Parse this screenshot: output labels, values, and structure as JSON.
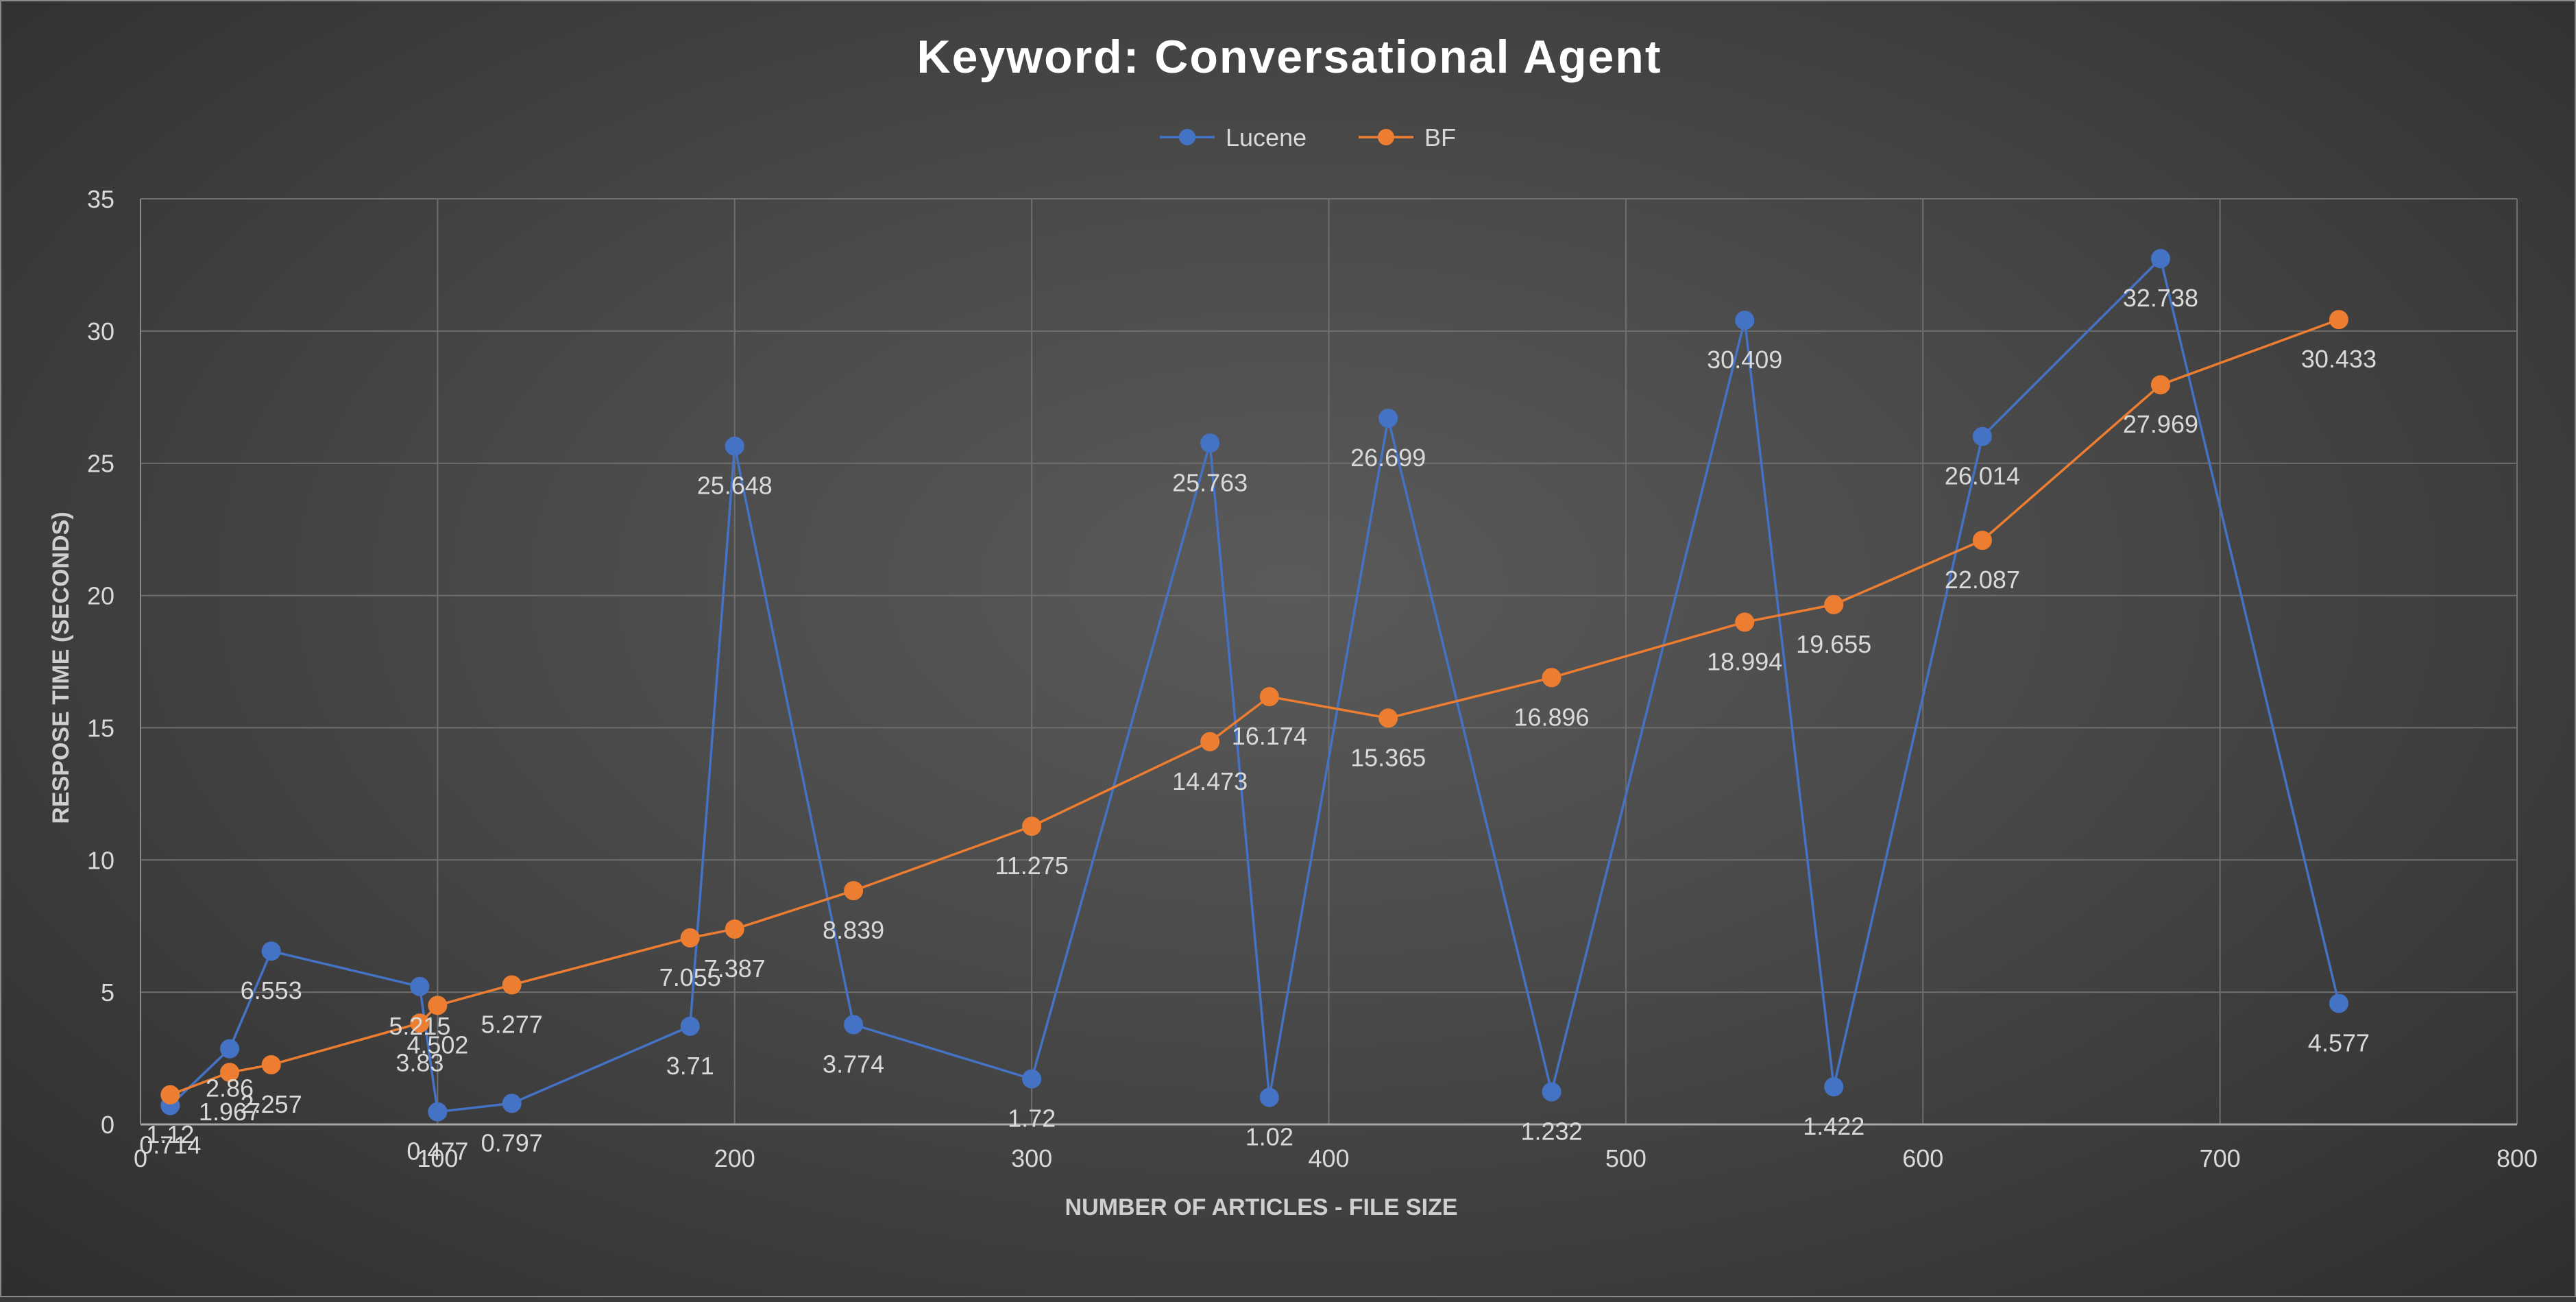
{
  "chart_data": {
    "type": "line",
    "title": "Keyword: Conversational Agent",
    "xlabel": "NUMBER OF ARTICLES - FILE SIZE",
    "ylabel": "RESPOSE TIME (SECONDS)",
    "xlim": [
      0,
      800
    ],
    "ylim": [
      0,
      35
    ],
    "x_ticks": [
      0,
      100,
      200,
      300,
      400,
      500,
      600,
      700,
      800
    ],
    "y_ticks": [
      0,
      5,
      10,
      15,
      20,
      25,
      30,
      35
    ],
    "grid": true,
    "legend_position": "top-center",
    "series": [
      {
        "name": "Lucene",
        "color": "#4472c4",
        "points": [
          {
            "x": 10,
            "y": 0.714,
            "label": "0.714"
          },
          {
            "x": 30,
            "y": 2.86,
            "label": "2.86"
          },
          {
            "x": 44,
            "y": 6.553,
            "label": "6.553"
          },
          {
            "x": 94,
            "y": 5.215,
            "label": "5.215"
          },
          {
            "x": 100,
            "y": 0.477,
            "label": "0.477"
          },
          {
            "x": 125,
            "y": 0.797,
            "label": "0.797"
          },
          {
            "x": 185,
            "y": 3.71,
            "label": "3.71"
          },
          {
            "x": 200,
            "y": 25.648,
            "label": "25.648"
          },
          {
            "x": 240,
            "y": 3.774,
            "label": "3.774"
          },
          {
            "x": 300,
            "y": 1.72,
            "label": "1.72"
          },
          {
            "x": 360,
            "y": 25.763,
            "label": "25.763"
          },
          {
            "x": 380,
            "y": 1.02,
            "label": "1.02"
          },
          {
            "x": 420,
            "y": 26.699,
            "label": "26.699"
          },
          {
            "x": 475,
            "y": 1.232,
            "label": "1.232"
          },
          {
            "x": 540,
            "y": 30.409,
            "label": "30.409"
          },
          {
            "x": 570,
            "y": 1.422,
            "label": "1.422"
          },
          {
            "x": 620,
            "y": 26.014,
            "label": "26.014"
          },
          {
            "x": 680,
            "y": 32.738,
            "label": "32.738"
          },
          {
            "x": 740,
            "y": 4.577,
            "label": "4.577"
          }
        ]
      },
      {
        "name": "BF",
        "color": "#ed7d31",
        "points": [
          {
            "x": 10,
            "y": 1.12,
            "label": "1.12"
          },
          {
            "x": 30,
            "y": 1.967,
            "label": "1.967"
          },
          {
            "x": 44,
            "y": 2.257,
            "label": "2.257"
          },
          {
            "x": 94,
            "y": 3.83,
            "label": "3.83"
          },
          {
            "x": 100,
            "y": 4.502,
            "label": "4.502"
          },
          {
            "x": 125,
            "y": 5.277,
            "label": "5.277"
          },
          {
            "x": 185,
            "y": 7.055,
            "label": "7.055"
          },
          {
            "x": 200,
            "y": 7.387,
            "label": "7.387"
          },
          {
            "x": 240,
            "y": 8.839,
            "label": "8.839"
          },
          {
            "x": 300,
            "y": 11.275,
            "label": "11.275"
          },
          {
            "x": 360,
            "y": 14.473,
            "label": "14.473"
          },
          {
            "x": 380,
            "y": 16.174,
            "label": "16.174"
          },
          {
            "x": 420,
            "y": 15.365,
            "label": "15.365"
          },
          {
            "x": 475,
            "y": 16.896,
            "label": "16.896"
          },
          {
            "x": 540,
            "y": 18.994,
            "label": "18.994"
          },
          {
            "x": 570,
            "y": 19.655,
            "label": "19.655"
          },
          {
            "x": 620,
            "y": 22.087,
            "label": "22.087"
          },
          {
            "x": 680,
            "y": 27.969,
            "label": "27.969"
          },
          {
            "x": 740,
            "y": 30.433,
            "label": "30.433"
          }
        ]
      }
    ]
  }
}
